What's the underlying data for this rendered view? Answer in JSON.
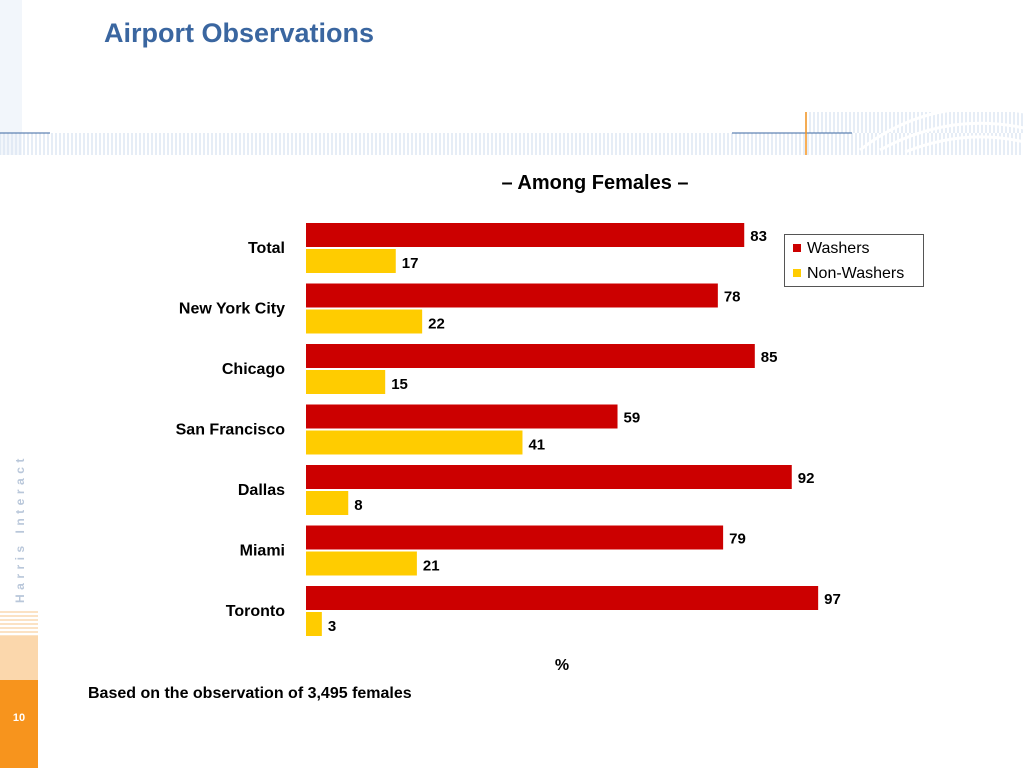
{
  "slide": {
    "title": "Airport Observations",
    "footnote": "Based on the observation of 3,495 females",
    "page_number": "10",
    "brand_text": "Harris Interactive"
  },
  "chart_data": {
    "type": "bar",
    "orientation": "horizontal",
    "title": "– Among Females –",
    "xlabel": "%",
    "ylabel": "",
    "xlim": [
      0,
      100
    ],
    "grid": false,
    "legend_position": "top-right",
    "categories": [
      "Total",
      "New York City",
      "Chicago",
      "San Francisco",
      "Dallas",
      "Miami",
      "Toronto"
    ],
    "series": [
      {
        "name": "Washers",
        "color": "#cc0000",
        "values": [
          83,
          78,
          85,
          59,
          92,
          79,
          97
        ]
      },
      {
        "name": "Non-Washers",
        "color": "#ffcc00",
        "values": [
          17,
          22,
          15,
          41,
          8,
          21,
          3
        ]
      }
    ]
  },
  "colors": {
    "title": "#3a66a0",
    "accent_orange": "#f7941d",
    "stripe_blue": "#c8d9ee"
  }
}
